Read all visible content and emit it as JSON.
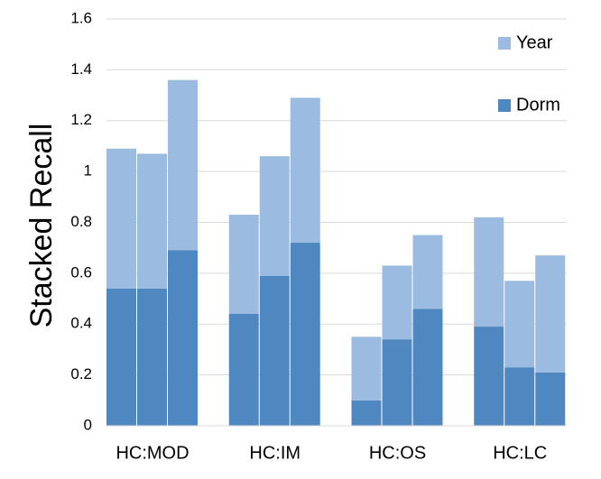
{
  "chart_data": {
    "type": "grouped-stacked-bar",
    "y_label": "Stacked Recall",
    "categories": [
      "HC:MOD",
      "HC:IM",
      "HC:OS",
      "HC:LC"
    ],
    "series": [
      {
        "name": "Dorm",
        "color": "#4f88c0",
        "values": [
          [
            0.54,
            0.54,
            0.69
          ],
          [
            0.44,
            0.59,
            0.72
          ],
          [
            0.1,
            0.34,
            0.46
          ],
          [
            0.39,
            0.23,
            0.21
          ]
        ]
      },
      {
        "name": "Year",
        "color": "#9bbbe0",
        "values": [
          [
            0.55,
            0.53,
            0.67
          ],
          [
            0.39,
            0.47,
            0.57
          ],
          [
            0.25,
            0.29,
            0.29
          ],
          [
            0.43,
            0.34,
            0.46
          ]
        ]
      }
    ],
    "ylim": [
      0,
      1.6
    ],
    "yticks": [
      0,
      0.2,
      0.4,
      0.6,
      0.8,
      1,
      1.2,
      1.4,
      1.6
    ],
    "grid": true
  }
}
